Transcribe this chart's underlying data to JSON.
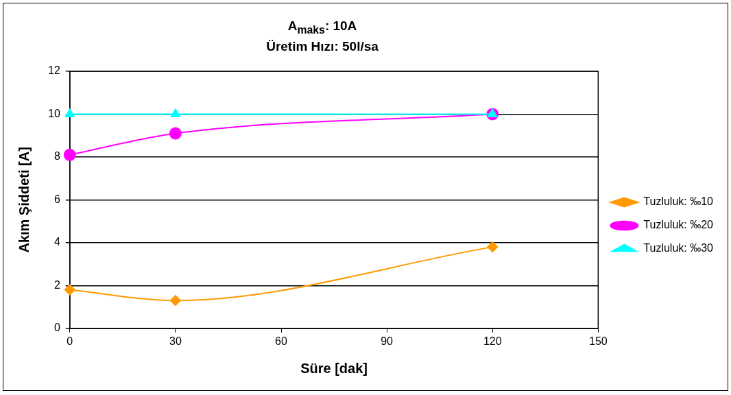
{
  "chart_data": {
    "type": "line",
    "title": "A$_{maks}$: 10A\nÜretim Hızı: 50l/sa",
    "xlabel": "Süre [dak]",
    "ylabel": "Akım Şiddeti [A]",
    "x": [
      0,
      30,
      120
    ],
    "series": [
      {
        "name": "Tuzluluk: ‰10",
        "color": "#ff9900",
        "marker": "diamond",
        "values": [
          1.8,
          1.3,
          3.8
        ]
      },
      {
        "name": "Tuzluluk: ‰20",
        "color": "#ff00ff",
        "marker": "circle",
        "values": [
          8.1,
          9.1,
          10
        ]
      },
      {
        "name": "Tuzluluk: ‰30",
        "color": "#00ffff",
        "marker": "triangle",
        "values": [
          10,
          10,
          10
        ]
      }
    ],
    "xlim": [
      0,
      150
    ],
    "xticks": [
      0,
      30,
      60,
      90,
      120,
      150
    ],
    "ylim": [
      0,
      12
    ],
    "yticks": [
      0,
      2,
      4,
      6,
      8,
      10,
      12
    ],
    "grid": "y",
    "legend": "right"
  }
}
